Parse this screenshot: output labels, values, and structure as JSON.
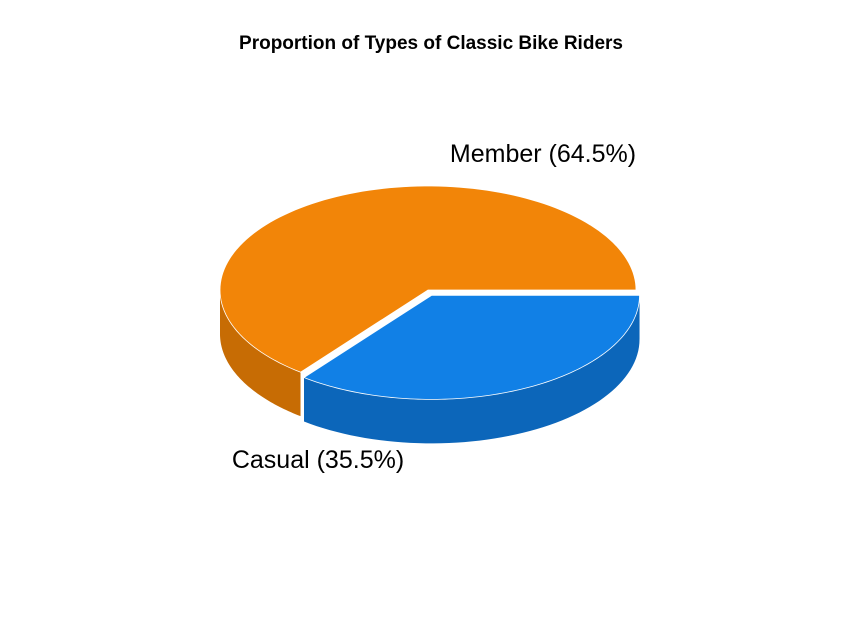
{
  "chart_data": {
    "type": "pie",
    "style": "3d-exploded",
    "title": "Proportion of Types of Classic Bike Riders",
    "slices": [
      {
        "name": "Member",
        "value": 64.5,
        "label": "Member (64.5%)",
        "color": "#F28508",
        "side_color": "#C76C04"
      },
      {
        "name": "Casual",
        "value": 35.5,
        "label": "Casual (35.5%)",
        "color": "#1180E6",
        "side_color": "#0C66BA",
        "exploded": true
      }
    ]
  }
}
